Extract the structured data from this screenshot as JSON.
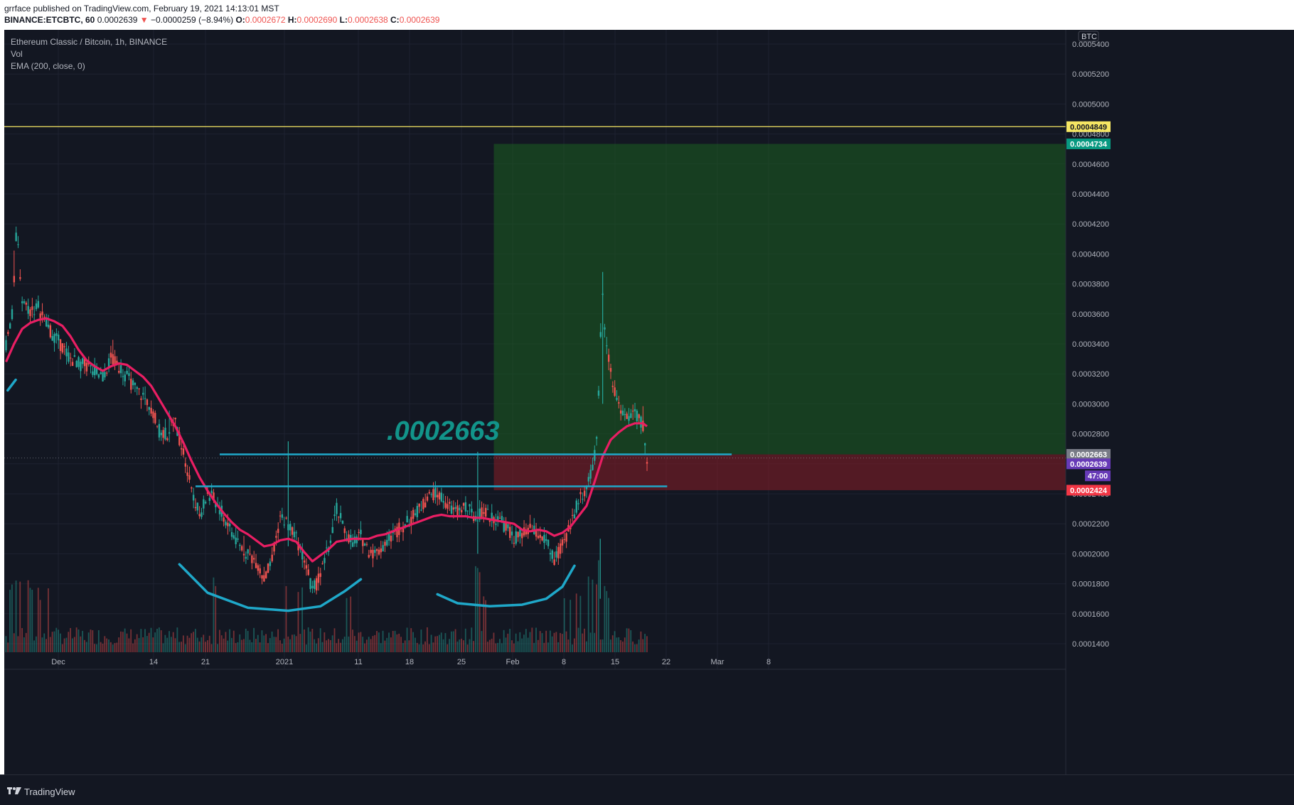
{
  "header": {
    "line1": "grrface published on TradingView.com, February 19, 2021 14:13:01 MST",
    "symbol": "BINANCE:ETCBTC, 60",
    "last": "0.0002639",
    "arrow": "▼",
    "change": "−0.0000259 (−8.94%)",
    "o_label": "O:",
    "o_value": "0.0002672",
    "h_label": "H:",
    "h_value": "0.0002690",
    "l_label": "L:",
    "l_value": "0.0002638",
    "c_label": "C:",
    "c_value": "0.0002639"
  },
  "legend": {
    "title": "Ethereum Classic / Bitcoin, 1h, BINANCE",
    "vol": "Vol",
    "ema": "EMA (200, close, 0)"
  },
  "footer": {
    "brand": "TradingView"
  },
  "colors": {
    "background": "#131722",
    "grid": "#1e2230",
    "candle_up": "#26a69a",
    "candle_down": "#ef5350",
    "ema": "#e91e63",
    "drawing": "#1fa8c9",
    "target_zone": "#1b5e20",
    "stop_zone": "#7f1d26",
    "resistance": "#f5e663"
  },
  "chart_data": {
    "type": "candlestick",
    "currency_badge": "BTC",
    "y_ticks": [
      "0.0005400",
      "0.0005200",
      "0.0005000",
      "0.0004800",
      "0.0004600",
      "0.0004400",
      "0.0004200",
      "0.0004000",
      "0.0003800",
      "0.0003600",
      "0.0003400",
      "0.0003200",
      "0.0003000",
      "0.0002800",
      "0.0002600",
      "0.0002400",
      "0.0002200",
      "0.0002000",
      "0.0001800",
      "0.0001600",
      "0.0001400"
    ],
    "x_ticks": [
      "Dec",
      "14",
      "21",
      "2021",
      "11",
      "18",
      "25",
      "Feb",
      "8",
      "15",
      "22",
      "Mar",
      "8"
    ],
    "ylim": [
      0.000136,
      0.000547
    ],
    "price_path": [
      [
        0,
        0.00034
      ],
      [
        0.8,
        0.00036
      ],
      [
        1.3,
        0.000418
      ],
      [
        2,
        0.00037
      ],
      [
        3,
        0.000362
      ],
      [
        4,
        0.000365
      ],
      [
        5,
        0.000352
      ],
      [
        6,
        0.000345
      ],
      [
        7,
        0.000338
      ],
      [
        8,
        0.00033
      ],
      [
        9,
        0.000327
      ],
      [
        10,
        0.000325
      ],
      [
        11,
        0.000322
      ],
      [
        12,
        0.000318
      ],
      [
        13,
        0.00033
      ],
      [
        14,
        0.000325
      ],
      [
        15,
        0.000318
      ],
      [
        16,
        0.00031
      ],
      [
        17,
        0.000305
      ],
      [
        18,
        0.000298
      ],
      [
        19,
        0.000282
      ],
      [
        20,
        0.00028
      ],
      [
        20.8,
        0.00029
      ],
      [
        22,
        0.000268
      ],
      [
        23,
        0.000245
      ],
      [
        24,
        0.000225
      ],
      [
        25,
        0.00024
      ],
      [
        26,
        0.000235
      ],
      [
        27,
        0.000225
      ],
      [
        28,
        0.000215
      ],
      [
        29,
        0.000205
      ],
      [
        30,
        0.0002
      ],
      [
        31,
        0.000195
      ],
      [
        32,
        0.000183
      ],
      [
        33,
        0.000195
      ],
      [
        34,
        0.000225
      ],
      [
        35,
        0.00022
      ],
      [
        36,
        0.00021
      ],
      [
        37,
        0.000197
      ],
      [
        38,
        0.000175
      ],
      [
        39,
        0.000185
      ],
      [
        40,
        0.000205
      ],
      [
        41,
        0.00023
      ],
      [
        42,
        0.000215
      ],
      [
        43,
        0.000208
      ],
      [
        44,
        0.000212
      ],
      [
        45,
        0.000202
      ],
      [
        46,
        0.0002
      ],
      [
        47,
        0.000208
      ],
      [
        48,
        0.000213
      ],
      [
        49,
        0.000218
      ],
      [
        50,
        0.000222
      ],
      [
        51,
        0.000228
      ],
      [
        52,
        0.000235
      ],
      [
        53,
        0.00024
      ],
      [
        54,
        0.000238
      ],
      [
        55,
        0.00023
      ],
      [
        56,
        0.000228
      ],
      [
        57,
        0.000232
      ],
      [
        58,
        0.000225
      ],
      [
        59,
        0.000228
      ],
      [
        60,
        0.000225
      ],
      [
        61,
        0.000223
      ],
      [
        62,
        0.000218
      ],
      [
        63,
        0.00021
      ],
      [
        64,
        0.000212
      ],
      [
        65,
        0.000216
      ],
      [
        66,
        0.000213
      ],
      [
        67,
        0.000208
      ],
      [
        68,
        0.000195
      ],
      [
        69,
        0.000205
      ],
      [
        70,
        0.00022
      ],
      [
        71,
        0.000235
      ],
      [
        72,
        0.000245
      ],
      [
        72.7,
        0.000255
      ],
      [
        73.3,
        0.000275
      ],
      [
        73.7,
        0.00034
      ],
      [
        74,
        0.000375
      ],
      [
        74.3,
        0.00035
      ],
      [
        74.8,
        0.00033
      ],
      [
        75.3,
        0.00031
      ],
      [
        76,
        0.0003
      ],
      [
        77,
        0.00029
      ],
      [
        78,
        0.000295
      ],
      [
        79,
        0.000285
      ],
      [
        79.5,
        0.000262
      ]
    ],
    "volume_peaks": [
      [
        0.8,
        0.9
      ],
      [
        1.5,
        1.0
      ],
      [
        3,
        0.9
      ],
      [
        4,
        0.75
      ],
      [
        5.5,
        0.7
      ],
      [
        26,
        0.9
      ],
      [
        35,
        0.8
      ],
      [
        36.5,
        0.75
      ],
      [
        41,
        0.75
      ],
      [
        42.5,
        0.7
      ],
      [
        58.5,
        0.95
      ],
      [
        59.5,
        0.7
      ],
      [
        69,
        0.65
      ],
      [
        70,
        0.7
      ],
      [
        71,
        0.8
      ],
      [
        72.5,
        0.85
      ],
      [
        73.5,
        1.0
      ],
      [
        74.5,
        0.75
      ]
    ],
    "ema_200": [
      [
        0,
        0.000328
      ],
      [
        1,
        0.00034
      ],
      [
        2,
        0.00035
      ],
      [
        3,
        0.000354
      ],
      [
        4,
        0.000356
      ],
      [
        5,
        0.000357
      ],
      [
        6,
        0.000355
      ],
      [
        7,
        0.000352
      ],
      [
        8,
        0.000345
      ],
      [
        9,
        0.000336
      ],
      [
        10,
        0.000329
      ],
      [
        11,
        0.000325
      ],
      [
        12,
        0.000322
      ],
      [
        13,
        0.000325
      ],
      [
        14,
        0.000327
      ],
      [
        15,
        0.000326
      ],
      [
        16,
        0.000322
      ],
      [
        17,
        0.000318
      ],
      [
        18,
        0.000312
      ],
      [
        19,
        0.000303
      ],
      [
        20,
        0.000294
      ],
      [
        21,
        0.000285
      ],
      [
        22,
        0.000274
      ],
      [
        23,
        0.000262
      ],
      [
        24,
        0.000251
      ],
      [
        25,
        0.000242
      ],
      [
        26,
        0.000234
      ],
      [
        27,
        0.000227
      ],
      [
        28,
        0.000221
      ],
      [
        29,
        0.000216
      ],
      [
        30,
        0.000213
      ],
      [
        31,
        0.000209
      ],
      [
        32,
        0.000205
      ],
      [
        33,
        0.000206
      ],
      [
        34,
        0.000209
      ],
      [
        35,
        0.00021
      ],
      [
        36,
        0.000208
      ],
      [
        37,
        0.000201
      ],
      [
        38,
        0.000195
      ],
      [
        39,
        0.000199
      ],
      [
        40,
        0.000203
      ],
      [
        41,
        0.000208
      ],
      [
        42,
        0.000209
      ],
      [
        43,
        0.00021
      ],
      [
        44,
        0.00021
      ],
      [
        45,
        0.00021
      ],
      [
        46,
        0.000212
      ],
      [
        47,
        0.000213
      ],
      [
        48,
        0.000215
      ],
      [
        49,
        0.000217
      ],
      [
        50,
        0.000219
      ],
      [
        51,
        0.000221
      ],
      [
        52,
        0.000223
      ],
      [
        53,
        0.000225
      ],
      [
        54,
        0.000226
      ],
      [
        55,
        0.000225
      ],
      [
        56,
        0.000225
      ],
      [
        57,
        0.000225
      ],
      [
        58,
        0.000224
      ],
      [
        59,
        0.000224
      ],
      [
        60,
        0.000223
      ],
      [
        61,
        0.000222
      ],
      [
        62,
        0.000221
      ],
      [
        63,
        0.00022
      ],
      [
        64,
        0.000216
      ],
      [
        65,
        0.000215
      ],
      [
        66,
        0.000216
      ],
      [
        67,
        0.000215
      ],
      [
        68,
        0.000212
      ],
      [
        69,
        0.000214
      ],
      [
        70,
        0.000218
      ],
      [
        71,
        0.000225
      ],
      [
        72,
        0.000232
      ],
      [
        73,
        0.000248
      ],
      [
        74,
        0.000265
      ],
      [
        75,
        0.000276
      ],
      [
        76,
        0.000281
      ],
      [
        77,
        0.000285
      ],
      [
        78,
        0.000287
      ],
      [
        79,
        0.000287
      ],
      [
        79.5,
        0.000285
      ]
    ],
    "annotations": {
      "breakout_label": ".0002663",
      "breakout_line": {
        "price": 0.0002663,
        "x_start": 26.5,
        "x_end": 90
      },
      "neckline": {
        "price": 0.000245,
        "x_start": 23.5,
        "x_end": 82
      },
      "resistance_line": {
        "price": 0.0004849
      },
      "target_zone": {
        "from": 0.0002663,
        "to": 0.0004734,
        "x_start": 60.5
      },
      "stop_zone": {
        "from": 0.0002424,
        "to": 0.0002663,
        "x_start": 60.5
      },
      "cup_left": [
        [
          21.5,
          0.000193
        ],
        [
          25,
          0.000174
        ],
        [
          30,
          0.000164
        ],
        [
          35,
          0.000162
        ],
        [
          39,
          0.000165
        ],
        [
          42,
          0.000175
        ],
        [
          44,
          0.000183
        ]
      ],
      "cup_right": [
        [
          53.5,
          0.000173
        ],
        [
          56,
          0.000167
        ],
        [
          60,
          0.000165
        ],
        [
          64,
          0.000166
        ],
        [
          67,
          0.00017
        ],
        [
          69,
          0.000178
        ],
        [
          70.5,
          0.000192
        ]
      ],
      "cup_tiny": [
        [
          0.2,
          0.000309
        ],
        [
          1.2,
          0.000316
        ]
      ]
    },
    "price_labels": [
      {
        "text": "0.0004849",
        "price": 0.0004849,
        "bg": "#f5e663",
        "fg": "#131722"
      },
      {
        "text": "0.0004734",
        "price": 0.0004734,
        "bg": "#089981",
        "fg": "#ffffff"
      },
      {
        "text": "0.0002663",
        "price": 0.0002663,
        "bg": "#787b86",
        "fg": "#ffffff"
      },
      {
        "text": "0.0002639",
        "price": 0.00026,
        "bg": "#673ab7",
        "fg": "#ffffff"
      },
      {
        "text": "47:00",
        "price": 0.000252,
        "bg": "#673ab7",
        "fg": "#ffffff",
        "short": true
      },
      {
        "text": "0.0002424",
        "price": 0.0002424,
        "bg": "#f23645",
        "fg": "#ffffff"
      }
    ]
  }
}
